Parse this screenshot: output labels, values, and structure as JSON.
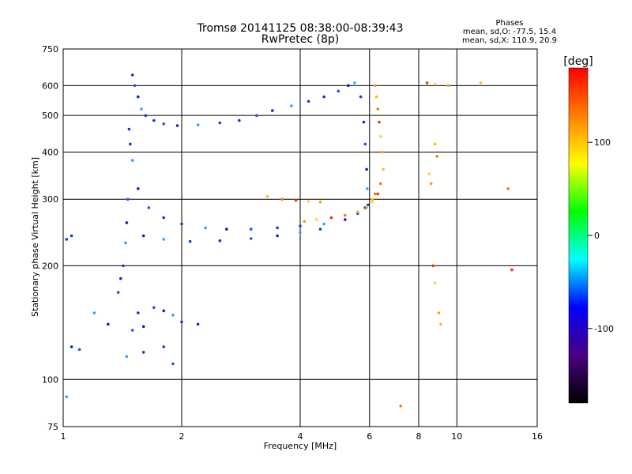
{
  "chart_data": {
    "type": "scatter",
    "title": "Tromsø 20141125 08:38:00-08:39:43",
    "subtitle": "RwPretec (8p)",
    "xlabel": "Frequency [MHz]",
    "ylabel": "Stationary phase Virtual Height [km]",
    "x_scale": "log",
    "y_scale": "log",
    "xlim": [
      1,
      16
    ],
    "ylim": [
      75,
      750
    ],
    "x_ticks": [
      1,
      2,
      4,
      6,
      8,
      10,
      16
    ],
    "x_tick_labels": [
      "1",
      "2",
      "4",
      "6",
      "8",
      "10",
      "16"
    ],
    "y_ticks": [
      75,
      100,
      200,
      300,
      400,
      500,
      600,
      750
    ],
    "y_tick_labels": [
      "75",
      "100",
      "200",
      "300",
      "400",
      "500",
      "600",
      "750"
    ],
    "grid": true,
    "legend": {
      "title": "Phases",
      "entries": [
        "mean, sd,O: -77.5, 15.4",
        "mean, sd,X: 110.9, 20.9"
      ]
    },
    "colorbar": {
      "label": "[deg]",
      "range": [
        -180,
        180
      ],
      "ticks": [
        100,
        0,
        -100
      ],
      "tick_labels": [
        "100",
        "0",
        "-100"
      ],
      "colors": [
        "#000000",
        "#4b0082",
        "#0000ff",
        "#00ffff",
        "#00ff00",
        "#ffff00",
        "#ff8000",
        "#ff0000"
      ]
    },
    "series": [
      {
        "name": "O-trace",
        "mean_phase": -77.5,
        "sd": 15.4,
        "points": [
          [
            1.5,
            640
          ],
          [
            1.52,
            600
          ],
          [
            1.55,
            560
          ],
          [
            1.58,
            520
          ],
          [
            1.62,
            500
          ],
          [
            1.7,
            485
          ],
          [
            1.8,
            475
          ],
          [
            1.95,
            470
          ],
          [
            2.2,
            472
          ],
          [
            2.5,
            478
          ],
          [
            2.8,
            485
          ],
          [
            3.1,
            500
          ],
          [
            3.4,
            515
          ],
          [
            3.8,
            530
          ],
          [
            4.2,
            545
          ],
          [
            4.6,
            560
          ],
          [
            5.0,
            580
          ],
          [
            5.3,
            600
          ],
          [
            5.5,
            610
          ],
          [
            5.7,
            560
          ],
          [
            5.8,
            480
          ],
          [
            5.85,
            420
          ],
          [
            5.9,
            360
          ],
          [
            5.92,
            320
          ],
          [
            5.95,
            290
          ],
          [
            5.85,
            285
          ],
          [
            5.6,
            275
          ],
          [
            5.2,
            265
          ],
          [
            4.6,
            258
          ],
          [
            4.0,
            255
          ],
          [
            3.5,
            252
          ],
          [
            3.0,
            250
          ],
          [
            2.6,
            250
          ],
          [
            2.3,
            252
          ],
          [
            2.0,
            258
          ],
          [
            1.8,
            268
          ],
          [
            1.65,
            285
          ],
          [
            1.55,
            320
          ],
          [
            1.5,
            380
          ],
          [
            1.48,
            420
          ],
          [
            1.47,
            460
          ],
          [
            1.46,
            300
          ],
          [
            1.45,
            260
          ],
          [
            1.44,
            230
          ],
          [
            1.42,
            200
          ],
          [
            1.4,
            185
          ],
          [
            1.38,
            170
          ],
          [
            1.6,
            240
          ],
          [
            1.8,
            235
          ],
          [
            2.1,
            232
          ],
          [
            2.5,
            233
          ],
          [
            3.0,
            236
          ],
          [
            3.5,
            240
          ],
          [
            4.0,
            245
          ],
          [
            4.5,
            250
          ],
          [
            1.55,
            150
          ],
          [
            1.7,
            155
          ],
          [
            1.8,
            152
          ],
          [
            1.9,
            148
          ],
          [
            2.0,
            142
          ],
          [
            2.2,
            140
          ],
          [
            1.5,
            135
          ],
          [
            1.6,
            138
          ],
          [
            1.45,
            115
          ],
          [
            1.6,
            118
          ],
          [
            1.8,
            122
          ],
          [
            1.9,
            110
          ],
          [
            1.3,
            140
          ],
          [
            1.2,
            150
          ],
          [
            1.02,
            235
          ],
          [
            1.05,
            240
          ],
          [
            1.1,
            120
          ],
          [
            1.05,
            122
          ],
          [
            1.02,
            90
          ]
        ]
      },
      {
        "name": "X-trace",
        "mean_phase": 110.9,
        "sd": 20.9,
        "points": [
          [
            6.2,
            600
          ],
          [
            6.25,
            560
          ],
          [
            6.3,
            520
          ],
          [
            6.35,
            480
          ],
          [
            6.4,
            440
          ],
          [
            6.45,
            400
          ],
          [
            6.5,
            360
          ],
          [
            6.4,
            330
          ],
          [
            6.3,
            310
          ],
          [
            6.1,
            295
          ],
          [
            5.9,
            285
          ],
          [
            5.6,
            278
          ],
          [
            5.2,
            272
          ],
          [
            4.8,
            268
          ],
          [
            4.4,
            265
          ],
          [
            4.1,
            262
          ],
          [
            3.3,
            305
          ],
          [
            3.6,
            300
          ],
          [
            3.9,
            298
          ],
          [
            4.2,
            296
          ],
          [
            4.5,
            295
          ],
          [
            6.1,
            300
          ],
          [
            6.2,
            310
          ],
          [
            8.4,
            610
          ],
          [
            8.8,
            605
          ],
          [
            9.5,
            600
          ],
          [
            11.5,
            610
          ],
          [
            13.5,
            320
          ],
          [
            13.8,
            195
          ],
          [
            8.5,
            350
          ],
          [
            8.6,
            330
          ],
          [
            8.8,
            420
          ],
          [
            8.9,
            390
          ],
          [
            8.7,
            200
          ],
          [
            8.8,
            180
          ],
          [
            9.0,
            150
          ],
          [
            9.1,
            140
          ],
          [
            7.2,
            85
          ]
        ]
      }
    ]
  }
}
